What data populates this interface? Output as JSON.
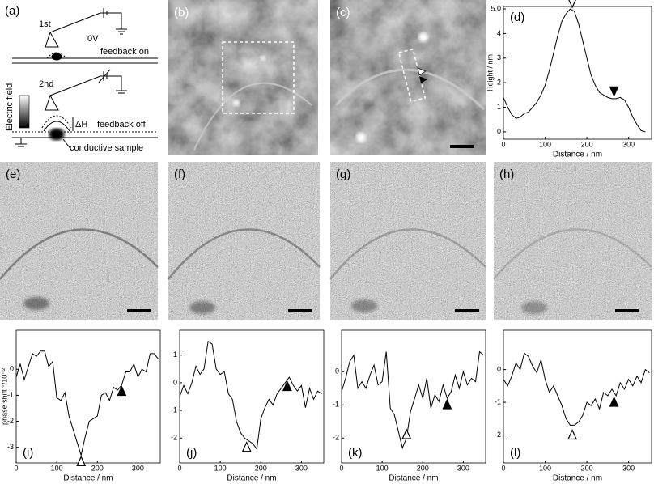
{
  "schematic": {
    "label": "(a)",
    "first": "1st",
    "voltage": "0V",
    "feedback_on": "feedback on",
    "second": "2nd",
    "field": "Electric field",
    "delta_h": "ΔH",
    "feedback_off": "feedback off",
    "sample": "conductive sample"
  },
  "images": {
    "b": "(b)",
    "c": "(c)",
    "e": "(e)",
    "f": "(f)",
    "g": "(g)",
    "h": "(h)"
  },
  "chart_data": [
    {
      "type": "line",
      "panel_label": "(d)",
      "xlabel": "Distance / nm",
      "ylabel": "Height / nm",
      "color": "#000000",
      "x": [
        0,
        10,
        20,
        30,
        40,
        50,
        60,
        70,
        80,
        90,
        100,
        110,
        120,
        130,
        140,
        150,
        160,
        170,
        180,
        190,
        200,
        210,
        220,
        230,
        240,
        250,
        260,
        270,
        280,
        290,
        300,
        310,
        320,
        330,
        340
      ],
      "values": [
        1.4,
        1.0,
        0.7,
        0.55,
        0.6,
        0.75,
        0.8,
        1.0,
        1.2,
        1.5,
        1.9,
        2.5,
        3.2,
        3.9,
        4.5,
        4.8,
        5.0,
        4.9,
        4.4,
        3.7,
        3.0,
        2.3,
        1.9,
        1.6,
        1.5,
        1.4,
        1.35,
        1.35,
        1.4,
        1.3,
        1.0,
        0.6,
        0.3,
        0.05,
        0.0
      ],
      "xlim": [
        0,
        355
      ],
      "xticks": [
        0,
        100,
        200,
        300
      ],
      "ylim": [
        -0.3,
        5.1
      ],
      "yticks": [
        0,
        1,
        2,
        3,
        4,
        {
          "value": 5,
          "label": "5.0"
        }
      ],
      "marker_direction": "down",
      "markers": [
        {
          "x": 165,
          "y": 5.0,
          "filled": false
        },
        {
          "x": 265,
          "y": 1.4,
          "filled": true
        }
      ]
    },
    {
      "type": "line",
      "panel_label": "(i)",
      "xlabel": "Distance / nm",
      "ylabel": "phase shift °/10⁻²",
      "color": "#000000",
      "x": [
        0,
        10,
        20,
        30,
        40,
        50,
        60,
        70,
        80,
        90,
        100,
        110,
        120,
        130,
        140,
        150,
        160,
        170,
        180,
        190,
        200,
        210,
        220,
        230,
        240,
        250,
        260,
        270,
        280,
        290,
        300,
        310,
        320,
        330,
        340,
        350
      ],
      "values": [
        -0.3,
        0.2,
        -0.4,
        0.1,
        0.6,
        0.5,
        0.7,
        0.7,
        0.1,
        0.3,
        -1.1,
        -1.2,
        -0.9,
        -1.8,
        -2.3,
        -2.8,
        -3.3,
        -2.6,
        -2.0,
        -1.9,
        -1.8,
        -1.0,
        -0.9,
        -1.2,
        -0.7,
        -0.8,
        -0.6,
        -0.1,
        -0.1,
        0.2,
        -0.3,
        0.0,
        -0.1,
        0.6,
        0.6,
        0.4
      ],
      "xlim": [
        0,
        355
      ],
      "xticks": [
        0,
        100,
        200,
        300
      ],
      "ylim": [
        -3.6,
        1.5
      ],
      "yticks": [
        -3,
        -2,
        -1,
        0
      ],
      "marker_direction": "up",
      "markers": [
        {
          "x": 160,
          "y": -3.3,
          "filled": false
        },
        {
          "x": 260,
          "y": -0.6,
          "filled": true
        }
      ]
    },
    {
      "type": "line",
      "panel_label": "(j)",
      "xlabel": "Distance / nm",
      "color": "#000000",
      "x": [
        0,
        10,
        20,
        30,
        40,
        50,
        60,
        70,
        80,
        90,
        100,
        110,
        120,
        130,
        140,
        150,
        160,
        170,
        180,
        190,
        200,
        210,
        220,
        230,
        240,
        250,
        260,
        270,
        280,
        290,
        300,
        310,
        320,
        330,
        340,
        350
      ],
      "values": [
        -0.5,
        -0.1,
        -0.4,
        0.0,
        0.6,
        0.3,
        0.5,
        1.5,
        1.4,
        0.5,
        0.3,
        0.4,
        -0.4,
        -0.6,
        -1.4,
        -1.8,
        -2.0,
        -2.1,
        -2.2,
        -2.4,
        -1.3,
        -0.9,
        -0.6,
        -0.8,
        -0.4,
        -0.2,
        0.0,
        0.2,
        -0.1,
        -0.3,
        -0.1,
        -0.9,
        -0.2,
        -0.6,
        -0.3,
        -0.4
      ],
      "xlim": [
        0,
        355
      ],
      "xticks": [
        0,
        100,
        200,
        300
      ],
      "ylim": [
        -2.9,
        1.9
      ],
      "yticks": [
        -2,
        -1,
        0,
        1
      ],
      "marker_direction": "up",
      "markers": [
        {
          "x": 165,
          "y": -2.1,
          "filled": false
        },
        {
          "x": 265,
          "y": 0.1,
          "filled": true
        }
      ]
    },
    {
      "type": "line",
      "panel_label": "(k)",
      "xlabel": "Distance / nm",
      "color": "#000000",
      "x": [
        0,
        10,
        20,
        30,
        40,
        50,
        60,
        70,
        80,
        90,
        100,
        110,
        120,
        130,
        140,
        150,
        160,
        170,
        180,
        190,
        200,
        210,
        220,
        230,
        240,
        250,
        260,
        270,
        280,
        290,
        300,
        310,
        320,
        330,
        340,
        350
      ],
      "values": [
        -0.6,
        -0.2,
        0.3,
        0.5,
        -0.5,
        -0.3,
        -0.5,
        -0.1,
        0.2,
        -0.4,
        -0.3,
        0.6,
        -1.1,
        -1.3,
        -1.8,
        -2.3,
        -2.0,
        -1.2,
        -0.8,
        -0.4,
        -0.8,
        -0.2,
        -1.1,
        -0.7,
        -0.9,
        -0.4,
        -0.8,
        -0.6,
        -0.1,
        -0.5,
        0.0,
        -0.4,
        -0.2,
        -0.3,
        0.6,
        0.5
      ],
      "xlim": [
        0,
        355
      ],
      "xticks": [
        0,
        100,
        200,
        300
      ],
      "ylim": [
        -2.75,
        1.25
      ],
      "yticks": [
        -2,
        -1,
        0
      ],
      "marker_direction": "up",
      "markers": [
        {
          "x": 160,
          "y": -1.7,
          "filled": false
        },
        {
          "x": 260,
          "y": -0.8,
          "filled": true
        }
      ]
    },
    {
      "type": "line",
      "panel_label": "(l)",
      "xlabel": "Distance / nm",
      "color": "#000000",
      "x": [
        0,
        10,
        20,
        30,
        40,
        50,
        60,
        70,
        80,
        90,
        100,
        110,
        120,
        130,
        140,
        150,
        160,
        170,
        180,
        190,
        200,
        210,
        220,
        230,
        240,
        250,
        260,
        270,
        280,
        290,
        300,
        310,
        320,
        330,
        340,
        350
      ],
      "values": [
        -0.3,
        -0.5,
        -0.2,
        0.2,
        0.0,
        0.5,
        0.4,
        0.1,
        -0.1,
        0.3,
        -0.3,
        -0.7,
        -0.5,
        -0.8,
        -1.1,
        -1.5,
        -1.7,
        -1.7,
        -1.6,
        -1.4,
        -1.0,
        -1.1,
        -0.9,
        -1.2,
        -0.7,
        -0.8,
        -0.6,
        -0.8,
        -0.4,
        -0.6,
        -0.3,
        -0.5,
        -0.2,
        -0.4,
        0.0,
        -0.1
      ],
      "xlim": [
        0,
        355
      ],
      "xticks": [
        0,
        100,
        200,
        300
      ],
      "ylim": [
        -2.85,
        1.2
      ],
      "yticks": [
        -2,
        -1,
        0
      ],
      "marker_direction": "up",
      "markers": [
        {
          "x": 165,
          "y": -1.8,
          "filled": false
        },
        {
          "x": 265,
          "y": -0.8,
          "filled": true
        }
      ]
    }
  ]
}
